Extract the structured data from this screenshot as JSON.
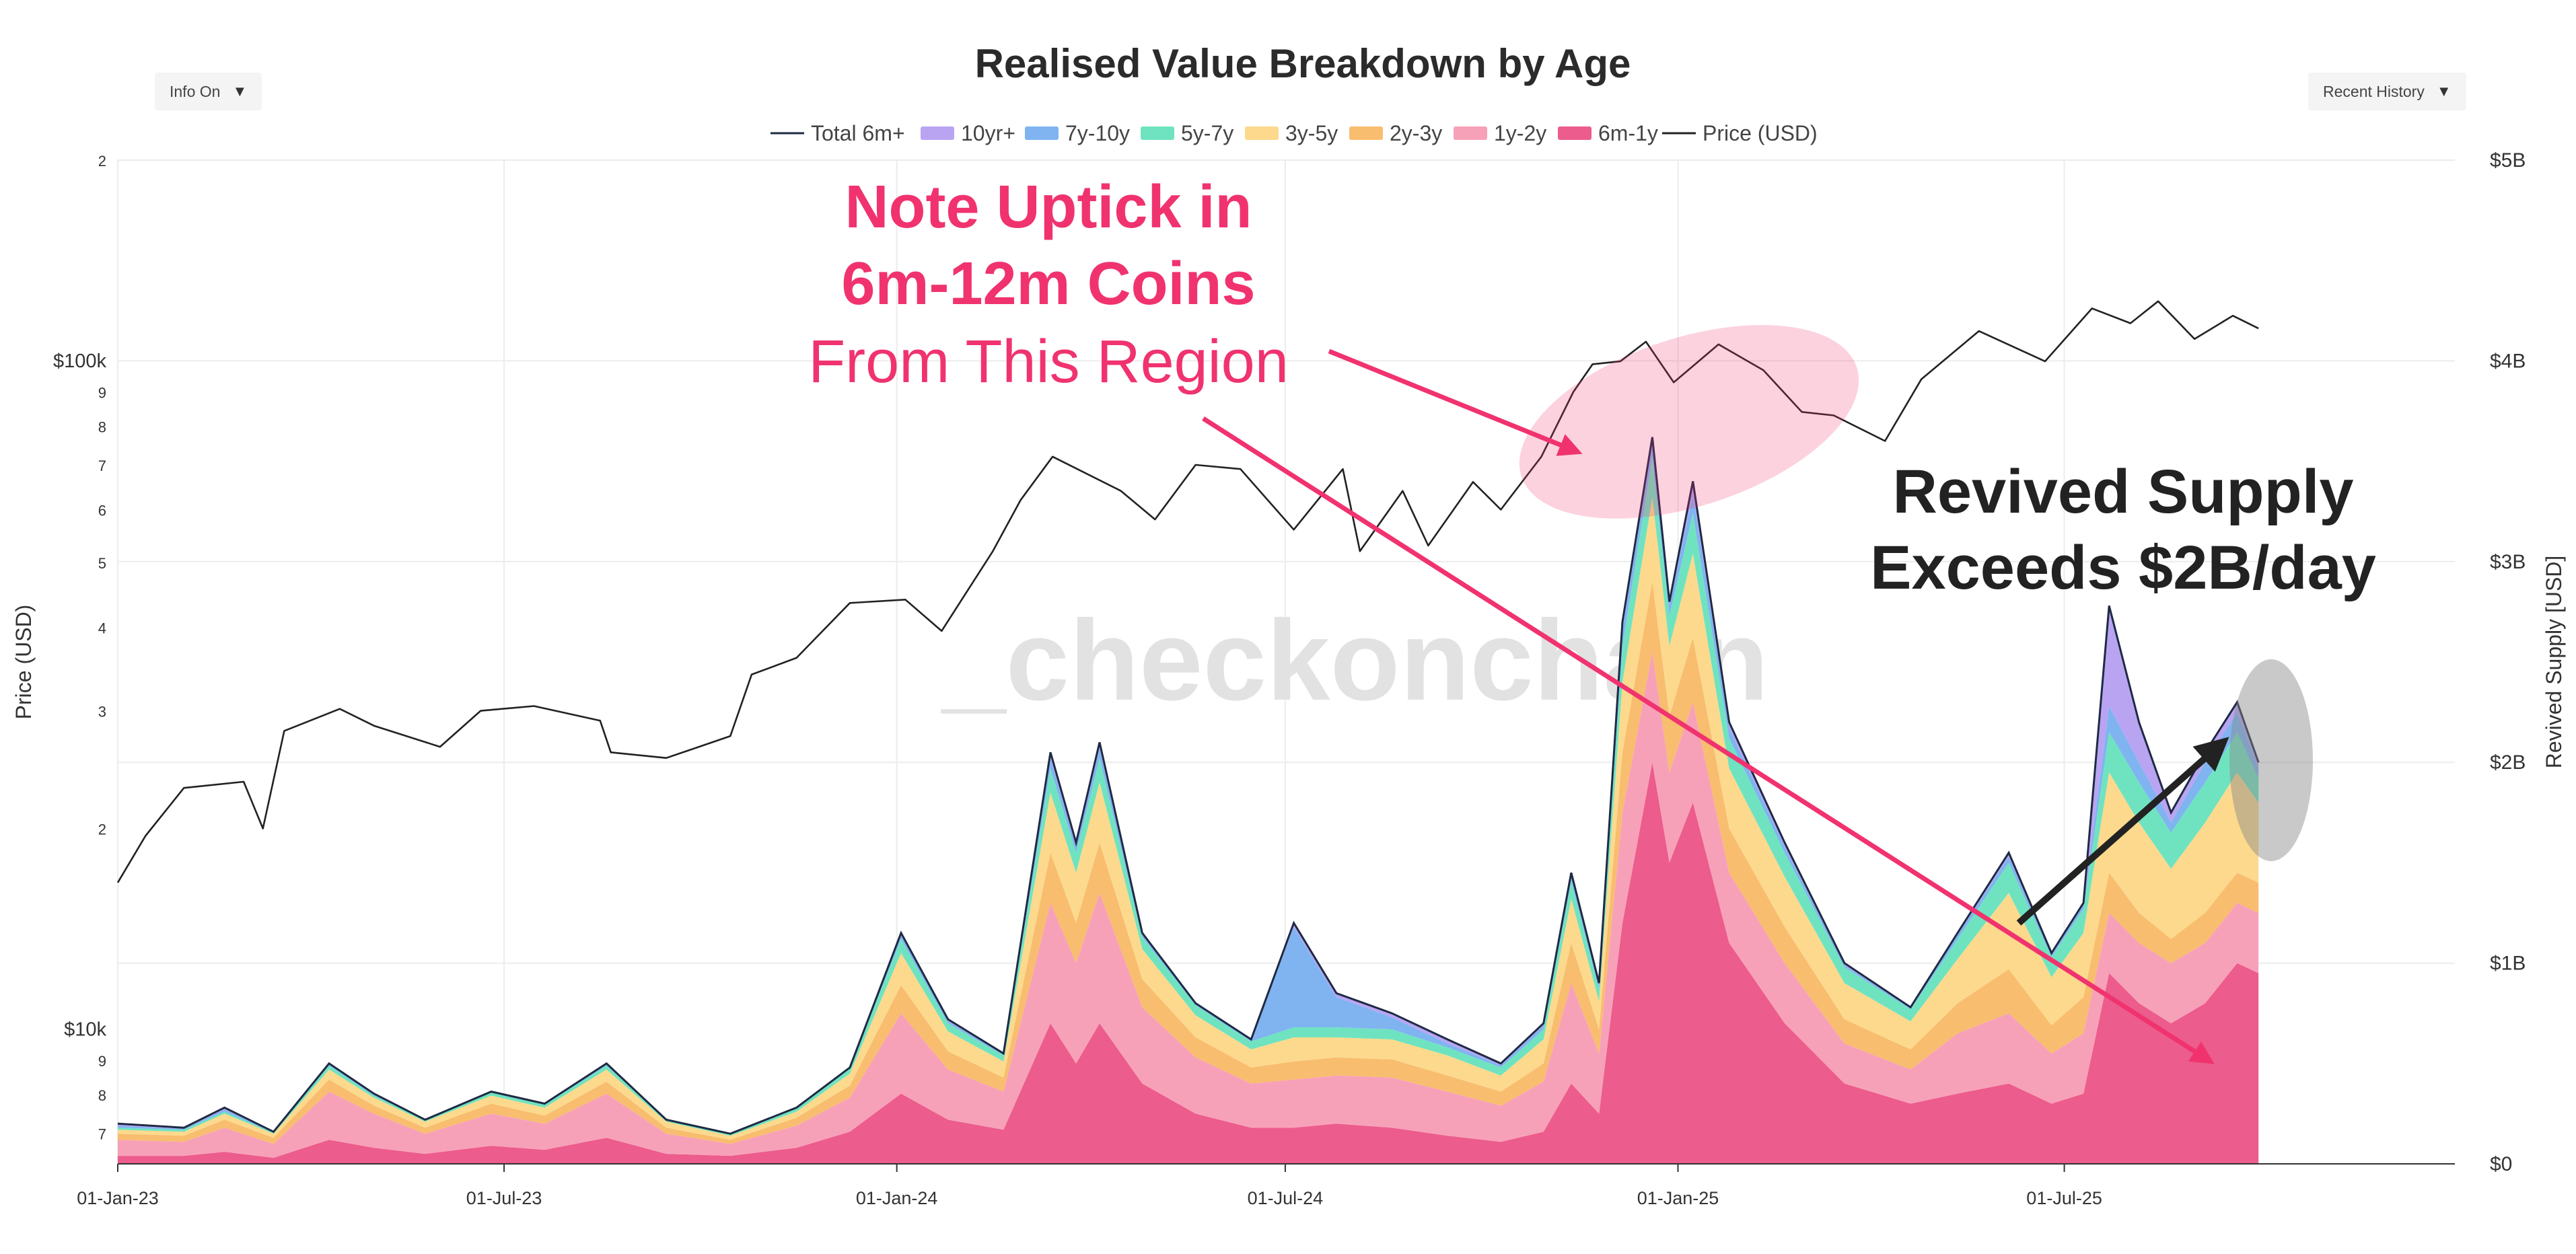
{
  "controls": {
    "info_label": "Info On",
    "history_label": "Recent History"
  },
  "chart_data": {
    "type": "area",
    "title": "Realised Value Breakdown by Age",
    "x_tick_labels": [
      "01-Jan-23",
      "01-Jul-23",
      "01-Jan-24",
      "01-Jul-24",
      "01-Jan-25",
      "01-Jul-25"
    ],
    "x_tick_dates": [
      "2023-01-01",
      "2023-07-01",
      "2024-01-01",
      "2024-07-01",
      "2025-01-01",
      "2025-07-01"
    ],
    "xlim": [
      "2023-01-01",
      "2025-12-31"
    ],
    "y_left": {
      "label": "Price (USD)",
      "scale": "log",
      "range": [
        6300,
        200000
      ],
      "ticks": [
        {
          "v": 7000,
          "t": "7"
        },
        {
          "v": 8000,
          "t": "8"
        },
        {
          "v": 9000,
          "t": "9"
        },
        {
          "v": 10000,
          "t": "$10k"
        },
        {
          "v": 20000,
          "t": "2"
        },
        {
          "v": 30000,
          "t": "3"
        },
        {
          "v": 40000,
          "t": "4"
        },
        {
          "v": 50000,
          "t": "5"
        },
        {
          "v": 60000,
          "t": "6"
        },
        {
          "v": 70000,
          "t": "7"
        },
        {
          "v": 80000,
          "t": "8"
        },
        {
          "v": 90000,
          "t": "9"
        },
        {
          "v": 100000,
          "t": "$100k"
        },
        {
          "v": 200000,
          "t": "2"
        }
      ]
    },
    "y_right": {
      "label": "Revived Supply [USD]",
      "range": [
        0,
        5
      ],
      "unit": "billion USD",
      "ticks": [
        {
          "v": 0,
          "t": "$0"
        },
        {
          "v": 1,
          "t": "$1B"
        },
        {
          "v": 2,
          "t": "$2B"
        },
        {
          "v": 3,
          "t": "$3B"
        },
        {
          "v": 4,
          "t": "$4B"
        },
        {
          "v": 5,
          "t": "$5B"
        }
      ]
    },
    "legend": [
      {
        "name": "Total 6m+",
        "color": "#1f2a44",
        "kind": "line"
      },
      {
        "name": "10yr+",
        "color": "#b9a4f2",
        "kind": "area"
      },
      {
        "name": "7y-10y",
        "color": "#7fb4f0",
        "kind": "area"
      },
      {
        "name": "5y-7y",
        "color": "#6fe3c0",
        "kind": "area"
      },
      {
        "name": "3y-5y",
        "color": "#fcd98d",
        "kind": "area"
      },
      {
        "name": "2y-3y",
        "color": "#f8bd6e",
        "kind": "area"
      },
      {
        "name": "1y-2y",
        "color": "#f7a1b9",
        "kind": "area"
      },
      {
        "name": "6m-1y",
        "color": "#ec5c8c",
        "kind": "area"
      },
      {
        "name": "Price (USD)",
        "color": "#222222",
        "kind": "line"
      }
    ],
    "price_series": {
      "name": "Price (USD)",
      "points": [
        [
          "2023-01-01",
          16600
        ],
        [
          "2023-01-14",
          19500
        ],
        [
          "2023-02-01",
          23000
        ],
        [
          "2023-03-01",
          23500
        ],
        [
          "2023-03-10",
          20000
        ],
        [
          "2023-03-20",
          28000
        ],
        [
          "2023-04-15",
          30200
        ],
        [
          "2023-05-01",
          28500
        ],
        [
          "2023-06-01",
          26500
        ],
        [
          "2023-06-20",
          30000
        ],
        [
          "2023-07-15",
          30500
        ],
        [
          "2023-08-15",
          29000
        ],
        [
          "2023-08-20",
          26000
        ],
        [
          "2023-09-15",
          25500
        ],
        [
          "2023-10-15",
          27500
        ],
        [
          "2023-10-25",
          34000
        ],
        [
          "2023-11-15",
          36000
        ],
        [
          "2023-12-10",
          43500
        ],
        [
          "2024-01-05",
          44000
        ],
        [
          "2024-01-22",
          39500
        ],
        [
          "2024-02-15",
          52000
        ],
        [
          "2024-02-28",
          62000
        ],
        [
          "2024-03-14",
          72000
        ],
        [
          "2024-04-15",
          64000
        ],
        [
          "2024-05-01",
          58000
        ],
        [
          "2024-05-20",
          70000
        ],
        [
          "2024-06-10",
          69000
        ],
        [
          "2024-07-05",
          56000
        ],
        [
          "2024-07-28",
          69000
        ],
        [
          "2024-08-05",
          52000
        ],
        [
          "2024-08-25",
          64000
        ],
        [
          "2024-09-06",
          53000
        ],
        [
          "2024-09-27",
          66000
        ],
        [
          "2024-10-10",
          60000
        ],
        [
          "2024-10-29",
          72000
        ],
        [
          "2024-11-13",
          90000
        ],
        [
          "2024-11-22",
          99000
        ],
        [
          "2024-12-05",
          100000
        ],
        [
          "2024-12-17",
          107000
        ],
        [
          "2024-12-30",
          93000
        ],
        [
          "2025-01-20",
          106000
        ],
        [
          "2025-02-10",
          97000
        ],
        [
          "2025-02-28",
          84000
        ],
        [
          "2025-03-15",
          83000
        ],
        [
          "2025-04-08",
          76000
        ],
        [
          "2025-04-25",
          94000
        ],
        [
          "2025-05-22",
          111000
        ],
        [
          "2025-06-22",
          100000
        ],
        [
          "2025-07-14",
          120000
        ],
        [
          "2025-08-01",
          114000
        ],
        [
          "2025-08-14",
          123000
        ],
        [
          "2025-08-31",
          108000
        ],
        [
          "2025-09-18",
          117000
        ],
        [
          "2025-09-30",
          112000
        ]
      ]
    },
    "revived_supply": {
      "unit": "billion USD",
      "components_order": [
        "6m-1y",
        "1y-2y",
        "2y-3y",
        "3y-5y",
        "5y-7y",
        "7y-10y",
        "10yr+"
      ],
      "points": [
        {
          "d": "2023-01-01",
          "total": 0.2,
          "s": [
            0.04,
            0.08,
            0.03,
            0.02,
            0.01,
            0.01,
            0.01
          ]
        },
        {
          "d": "2023-02-01",
          "total": 0.18,
          "s": [
            0.04,
            0.07,
            0.03,
            0.02,
            0.01,
            0.005,
            0.005
          ]
        },
        {
          "d": "2023-02-20",
          "total": 0.28,
          "s": [
            0.06,
            0.12,
            0.04,
            0.03,
            0.01,
            0.01,
            0.01
          ]
        },
        {
          "d": "2023-03-15",
          "total": 0.16,
          "s": [
            0.03,
            0.07,
            0.03,
            0.02,
            0.005,
            0.005,
            0.0
          ]
        },
        {
          "d": "2023-04-10",
          "total": 0.5,
          "s": [
            0.12,
            0.24,
            0.06,
            0.05,
            0.02,
            0.005,
            0.005
          ]
        },
        {
          "d": "2023-05-01",
          "total": 0.35,
          "s": [
            0.08,
            0.17,
            0.04,
            0.04,
            0.01,
            0.005,
            0.005
          ]
        },
        {
          "d": "2023-05-25",
          "total": 0.22,
          "s": [
            0.05,
            0.1,
            0.03,
            0.03,
            0.01,
            0.0,
            0.0
          ]
        },
        {
          "d": "2023-06-25",
          "total": 0.36,
          "s": [
            0.09,
            0.16,
            0.05,
            0.04,
            0.015,
            0.0025,
            0.0025
          ]
        },
        {
          "d": "2023-07-20",
          "total": 0.3,
          "s": [
            0.07,
            0.13,
            0.04,
            0.04,
            0.015,
            0.0025,
            0.0025
          ]
        },
        {
          "d": "2023-08-18",
          "total": 0.5,
          "s": [
            0.13,
            0.22,
            0.06,
            0.06,
            0.02,
            0.005,
            0.005
          ]
        },
        {
          "d": "2023-09-15",
          "total": 0.22,
          "s": [
            0.05,
            0.1,
            0.03,
            0.03,
            0.01,
            0.0,
            0.0
          ]
        },
        {
          "d": "2023-10-15",
          "total": 0.15,
          "s": [
            0.04,
            0.06,
            0.02,
            0.02,
            0.01,
            0.0,
            0.0
          ]
        },
        {
          "d": "2023-11-15",
          "total": 0.28,
          "s": [
            0.08,
            0.11,
            0.04,
            0.03,
            0.02,
            0.0,
            0.0
          ]
        },
        {
          "d": "2023-12-10",
          "total": 0.48,
          "s": [
            0.16,
            0.17,
            0.06,
            0.06,
            0.03,
            0.0,
            0.0
          ]
        },
        {
          "d": "2024-01-03",
          "total": 1.15,
          "s": [
            0.35,
            0.4,
            0.14,
            0.16,
            0.07,
            0.02,
            0.01
          ]
        },
        {
          "d": "2024-01-25",
          "total": 0.72,
          "s": [
            0.22,
            0.25,
            0.09,
            0.1,
            0.04,
            0.01,
            0.01
          ]
        },
        {
          "d": "2024-02-20",
          "total": 0.55,
          "s": [
            0.17,
            0.19,
            0.07,
            0.08,
            0.03,
            0.005,
            0.005
          ]
        },
        {
          "d": "2024-03-13",
          "total": 2.05,
          "s": [
            0.7,
            0.6,
            0.25,
            0.3,
            0.12,
            0.05,
            0.03
          ]
        },
        {
          "d": "2024-03-25",
          "total": 1.6,
          "s": [
            0.5,
            0.5,
            0.2,
            0.25,
            0.1,
            0.03,
            0.02
          ]
        },
        {
          "d": "2024-04-05",
          "total": 2.1,
          "s": [
            0.7,
            0.65,
            0.25,
            0.3,
            0.12,
            0.05,
            0.03
          ]
        },
        {
          "d": "2024-04-25",
          "total": 1.15,
          "s": [
            0.4,
            0.38,
            0.14,
            0.15,
            0.06,
            0.01,
            0.01
          ]
        },
        {
          "d": "2024-05-20",
          "total": 0.8,
          "s": [
            0.25,
            0.28,
            0.1,
            0.11,
            0.05,
            0.005,
            0.005
          ]
        },
        {
          "d": "2024-06-15",
          "total": 0.62,
          "s": [
            0.18,
            0.22,
            0.08,
            0.09,
            0.04,
            0.005,
            0.005
          ]
        },
        {
          "d": "2024-07-05",
          "total": 1.2,
          "s": [
            0.18,
            0.24,
            0.09,
            0.12,
            0.05,
            0.5,
            0.02
          ]
        },
        {
          "d": "2024-07-25",
          "total": 0.85,
          "s": [
            0.2,
            0.24,
            0.09,
            0.1,
            0.05,
            0.15,
            0.02
          ]
        },
        {
          "d": "2024-08-20",
          "total": 0.75,
          "s": [
            0.18,
            0.25,
            0.09,
            0.1,
            0.05,
            0.06,
            0.02
          ]
        },
        {
          "d": "2024-09-15",
          "total": 0.62,
          "s": [
            0.14,
            0.22,
            0.08,
            0.1,
            0.04,
            0.02,
            0.02
          ]
        },
        {
          "d": "2024-10-10",
          "total": 0.5,
          "s": [
            0.11,
            0.18,
            0.07,
            0.08,
            0.04,
            0.01,
            0.01
          ]
        },
        {
          "d": "2024-10-30",
          "total": 0.7,
          "s": [
            0.16,
            0.25,
            0.09,
            0.12,
            0.05,
            0.02,
            0.01
          ]
        },
        {
          "d": "2024-11-12",
          "total": 1.45,
          "s": [
            0.4,
            0.5,
            0.2,
            0.22,
            0.09,
            0.03,
            0.01
          ]
        },
        {
          "d": "2024-11-25",
          "total": 0.9,
          "s": [
            0.25,
            0.3,
            0.12,
            0.14,
            0.06,
            0.02,
            0.01
          ]
        },
        {
          "d": "2024-12-06",
          "total": 2.7,
          "s": [
            1.2,
            0.55,
            0.3,
            0.35,
            0.18,
            0.08,
            0.04
          ]
        },
        {
          "d": "2024-12-20",
          "total": 3.62,
          "s": [
            2.0,
            0.55,
            0.35,
            0.42,
            0.2,
            0.07,
            0.03
          ]
        },
        {
          "d": "2024-12-28",
          "total": 2.8,
          "s": [
            1.5,
            0.45,
            0.28,
            0.35,
            0.15,
            0.05,
            0.02
          ]
        },
        {
          "d": "2025-01-08",
          "total": 3.4,
          "s": [
            1.8,
            0.5,
            0.32,
            0.42,
            0.2,
            0.1,
            0.06
          ]
        },
        {
          "d": "2025-01-25",
          "total": 2.2,
          "s": [
            1.1,
            0.35,
            0.22,
            0.3,
            0.15,
            0.05,
            0.03
          ]
        },
        {
          "d": "2025-02-20",
          "total": 1.6,
          "s": [
            0.7,
            0.3,
            0.18,
            0.25,
            0.12,
            0.03,
            0.02
          ]
        },
        {
          "d": "2025-03-20",
          "total": 1.0,
          "s": [
            0.4,
            0.2,
            0.12,
            0.18,
            0.08,
            0.01,
            0.01
          ]
        },
        {
          "d": "2025-04-20",
          "total": 0.78,
          "s": [
            0.3,
            0.17,
            0.1,
            0.14,
            0.06,
            0.005,
            0.005
          ]
        },
        {
          "d": "2025-05-12",
          "total": 1.15,
          "s": [
            0.35,
            0.3,
            0.15,
            0.22,
            0.1,
            0.02,
            0.01
          ]
        },
        {
          "d": "2025-06-05",
          "total": 1.55,
          "s": [
            0.4,
            0.35,
            0.22,
            0.38,
            0.15,
            0.03,
            0.02
          ]
        },
        {
          "d": "2025-06-25",
          "total": 1.05,
          "s": [
            0.3,
            0.25,
            0.14,
            0.24,
            0.1,
            0.01,
            0.01
          ]
        },
        {
          "d": "2025-07-10",
          "total": 1.3,
          "s": [
            0.35,
            0.3,
            0.18,
            0.32,
            0.12,
            0.02,
            0.01
          ]
        },
        {
          "d": "2025-07-22",
          "total": 2.78,
          "s": [
            0.95,
            0.3,
            0.2,
            0.5,
            0.2,
            0.13,
            0.5
          ]
        },
        {
          "d": "2025-08-05",
          "total": 2.2,
          "s": [
            0.8,
            0.3,
            0.15,
            0.45,
            0.2,
            0.1,
            0.2
          ]
        },
        {
          "d": "2025-08-20",
          "total": 1.75,
          "s": [
            0.7,
            0.3,
            0.12,
            0.35,
            0.18,
            0.05,
            0.05
          ]
        },
        {
          "d": "2025-09-05",
          "total": 2.05,
          "s": [
            0.8,
            0.3,
            0.15,
            0.45,
            0.2,
            0.1,
            0.05
          ]
        },
        {
          "d": "2025-09-20",
          "total": 2.3,
          "s": [
            1.0,
            0.3,
            0.15,
            0.5,
            0.2,
            0.1,
            0.05
          ]
        },
        {
          "d": "2025-09-30",
          "total": 2.0,
          "s": [
            0.95,
            0.3,
            0.15,
            0.4,
            0.12,
            0.05,
            0.03
          ]
        }
      ]
    },
    "annotations": {
      "note_lines": [
        "Note Uptick in",
        "6m-12m Coins",
        "From This Region"
      ],
      "revived_lines": [
        "Revived Supply",
        "Exceeds $2B/day"
      ],
      "note_color": "#f0336f",
      "revived_color": "#222222"
    },
    "watermark": "_checkonchain",
    "grid": true,
    "legend_position": "top-center"
  }
}
